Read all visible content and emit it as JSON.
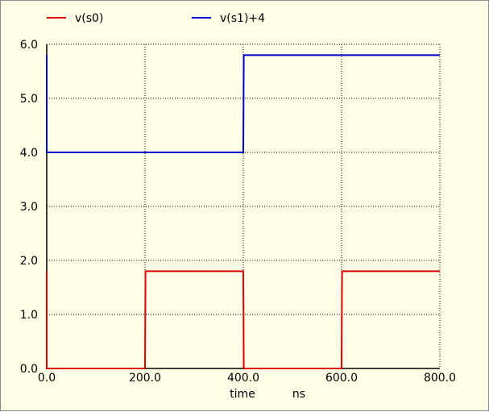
{
  "chart_data": {
    "type": "line",
    "xlabel": "time",
    "xunit": "ns",
    "xlim": [
      0,
      800
    ],
    "ylim": [
      0,
      6
    ],
    "x_ticks": [
      "0.0",
      "200.0",
      "400.0",
      "600.0",
      "800.0"
    ],
    "y_ticks": [
      "0.0",
      "1.0",
      "2.0",
      "3.0",
      "4.0",
      "5.0",
      "6.0"
    ],
    "grid": true,
    "legend_position": "top",
    "series": [
      {
        "name": "v(s0)",
        "color": "#dd0000",
        "points": [
          [
            0,
            1.8
          ],
          [
            0,
            0
          ],
          [
            200,
            0
          ],
          [
            201,
            1.8
          ],
          [
            400,
            1.8
          ],
          [
            401,
            0
          ],
          [
            600,
            0
          ],
          [
            601,
            1.8
          ],
          [
            800,
            1.8
          ]
        ]
      },
      {
        "name": "v(s1)+4",
        "color": "#0000cc",
        "points": [
          [
            0,
            5.8
          ],
          [
            0,
            4
          ],
          [
            400,
            4
          ],
          [
            401,
            5.8
          ],
          [
            800,
            5.8
          ]
        ]
      }
    ]
  }
}
